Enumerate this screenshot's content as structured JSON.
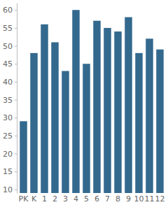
{
  "chart_data": {
    "type": "bar",
    "categories": [
      "PK",
      "K",
      "1",
      "2",
      "3",
      "4",
      "5",
      "6",
      "7",
      "8",
      "9",
      "10",
      "11",
      "12"
    ],
    "values": [
      29,
      48,
      56,
      51,
      43,
      60,
      45,
      57,
      55,
      54,
      58,
      48,
      52,
      49
    ],
    "color": "#34698e",
    "ylim": [
      9,
      62
    ],
    "yticks": [
      10,
      15,
      20,
      25,
      30,
      35,
      40,
      45,
      50,
      55,
      60
    ],
    "grid": false
  }
}
